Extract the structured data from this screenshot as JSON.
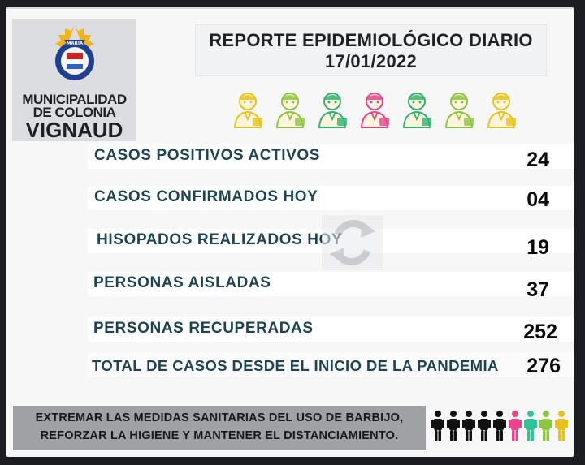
{
  "header": {
    "title_line1": "REPORTE EPIDEMIOLÓGICO DIARIO",
    "title_line2": "17/01/2022"
  },
  "logo": {
    "seal_text": "MARÍA",
    "line1": "MUNICIPALIDAD",
    "line2": "DE COLONIA",
    "line3": "VIGNAUD"
  },
  "stats": [
    {
      "label": "CASOS POSITIVOS ACTIVOS",
      "value": "24"
    },
    {
      "label": "CASOS CONFIRMADOS HOY",
      "value": "04"
    },
    {
      "label": "HISOPADOS REALIZADOS HOY",
      "value": "19"
    },
    {
      "label": "PERSONAS AISLADAS",
      "value": "37"
    },
    {
      "label": "PERSONAS RECUPERADAS",
      "value": "252"
    },
    {
      "label": "TOTAL DE CASOS DESDE EL INICIO DE LA PANDEMIA",
      "value": "276"
    }
  ],
  "footer": {
    "line1": "EXTREMAR LAS MEDIDAS SANITARIAS DEL USO DE BARBIJO,",
    "line2": "REFORZAR LA HIGIENE Y MANTENER EL DISTANCIAMIENTO."
  },
  "icons": {
    "workers": [
      {
        "name": "office-worker-icon",
        "color": "#e8c21c"
      },
      {
        "name": "nurse-icon",
        "color": "#8cc63f"
      },
      {
        "name": "construction-worker-icon",
        "color": "#2fb36f"
      },
      {
        "name": "doctor-icon",
        "color": "#e8428a"
      },
      {
        "name": "medic-icon",
        "color": "#2fb36f"
      },
      {
        "name": "teacher-icon",
        "color": "#8cc63f"
      },
      {
        "name": "firefighter-icon",
        "color": "#e8c21c"
      }
    ],
    "crowd": [
      "#111111",
      "#111111",
      "#111111",
      "#111111",
      "#111111",
      "#e8428a",
      "#2fc49a",
      "#8cc63f",
      "#e8c21c"
    ]
  }
}
